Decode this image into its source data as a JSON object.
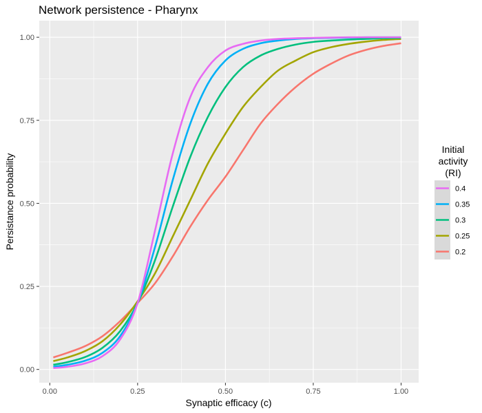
{
  "chart_data": {
    "type": "line",
    "title": "Network persistence - Pharynx",
    "xlabel": "Synaptic efficacy (c)",
    "ylabel": "Persistance probability",
    "xlim": [
      -0.03,
      1.05
    ],
    "ylim": [
      -0.04,
      1.05
    ],
    "xticks": [
      0,
      0.25,
      0.5,
      0.75,
      1
    ],
    "xtick_labels": [
      "0.00",
      "0.25",
      "0.50",
      "0.75",
      "1.00"
    ],
    "yticks": [
      0,
      0.25,
      0.5,
      0.75,
      1
    ],
    "ytick_labels": [
      "0.00",
      "0.25",
      "0.50",
      "0.75",
      "1.00"
    ],
    "grid": true,
    "legend": {
      "title_lines": [
        "Initial",
        "activity",
        "(RI)"
      ],
      "position": "right"
    },
    "x": [
      0.01,
      0.05,
      0.1,
      0.15,
      0.2,
      0.25,
      0.3,
      0.35,
      0.4,
      0.45,
      0.5,
      0.55,
      0.6,
      0.65,
      0.7,
      0.75,
      0.8,
      0.85,
      0.9,
      0.95,
      1.0
    ],
    "series": [
      {
        "name": "0.4",
        "color": "#E76BF3",
        "values": [
          0.004,
          0.008,
          0.018,
          0.04,
          0.09,
          0.2,
          0.42,
          0.65,
          0.82,
          0.91,
          0.96,
          0.98,
          0.99,
          0.995,
          0.997,
          0.998,
          0.999,
          1.0,
          1.0,
          1.0,
          1.0
        ]
      },
      {
        "name": "0.35",
        "color": "#00B0F6",
        "values": [
          0.008,
          0.014,
          0.026,
          0.05,
          0.1,
          0.2,
          0.37,
          0.57,
          0.74,
          0.86,
          0.93,
          0.965,
          0.982,
          0.99,
          0.995,
          0.997,
          0.998,
          0.999,
          1.0,
          1.0,
          1.0
        ]
      },
      {
        "name": "0.3",
        "color": "#00BF7D",
        "values": [
          0.014,
          0.022,
          0.037,
          0.065,
          0.115,
          0.2,
          0.33,
          0.49,
          0.64,
          0.76,
          0.85,
          0.91,
          0.945,
          0.965,
          0.978,
          0.986,
          0.99,
          0.993,
          0.995,
          0.997,
          0.998
        ]
      },
      {
        "name": "0.25",
        "color": "#A3A500",
        "values": [
          0.025,
          0.036,
          0.055,
          0.085,
          0.135,
          0.205,
          0.29,
          0.4,
          0.51,
          0.62,
          0.71,
          0.79,
          0.85,
          0.9,
          0.93,
          0.955,
          0.97,
          0.98,
          0.987,
          0.992,
          0.995
        ]
      },
      {
        "name": "0.2",
        "color": "#F8766D",
        "values": [
          0.036,
          0.05,
          0.07,
          0.1,
          0.145,
          0.2,
          0.26,
          0.34,
          0.43,
          0.51,
          0.58,
          0.66,
          0.74,
          0.8,
          0.85,
          0.89,
          0.92,
          0.945,
          0.962,
          0.974,
          0.982
        ]
      }
    ]
  }
}
